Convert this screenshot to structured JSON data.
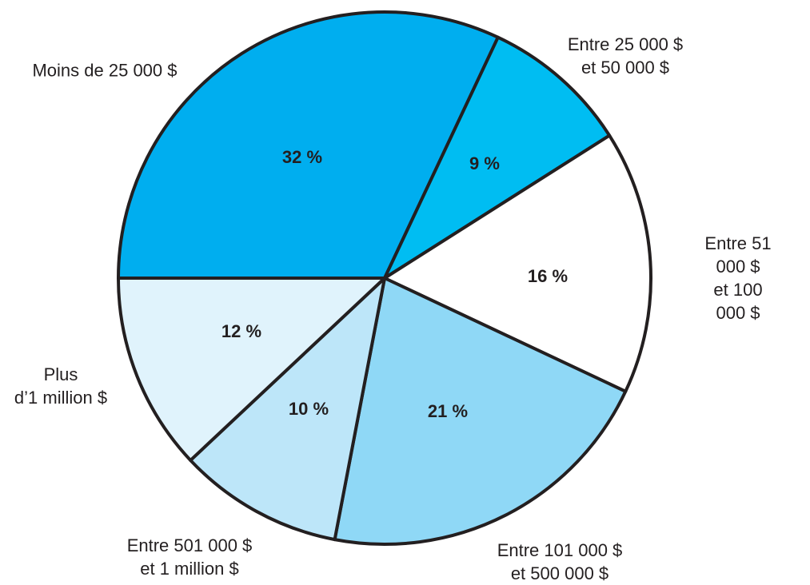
{
  "chart_data": {
    "type": "pie",
    "categories": [
      "Moins de 25 000 $",
      "Entre 25 000 $\net 50 000 $",
      "Entre 51 000 $\net 100 000 $",
      "Entre 101 000 $\net 500 000 $",
      "Entre 501 000 $\net 1 million $",
      "Plus\nd’1 million $"
    ],
    "values": [
      32,
      9,
      16,
      21,
      10,
      12
    ],
    "value_labels": [
      "32 %",
      "9 %",
      "16 %",
      "21 %",
      "10 %",
      "12 %"
    ],
    "colors": [
      "#00aeef",
      "#00bdf2",
      "#ffffff",
      "#8fd8f6",
      "#bde6f9",
      "#e0f3fc"
    ]
  }
}
